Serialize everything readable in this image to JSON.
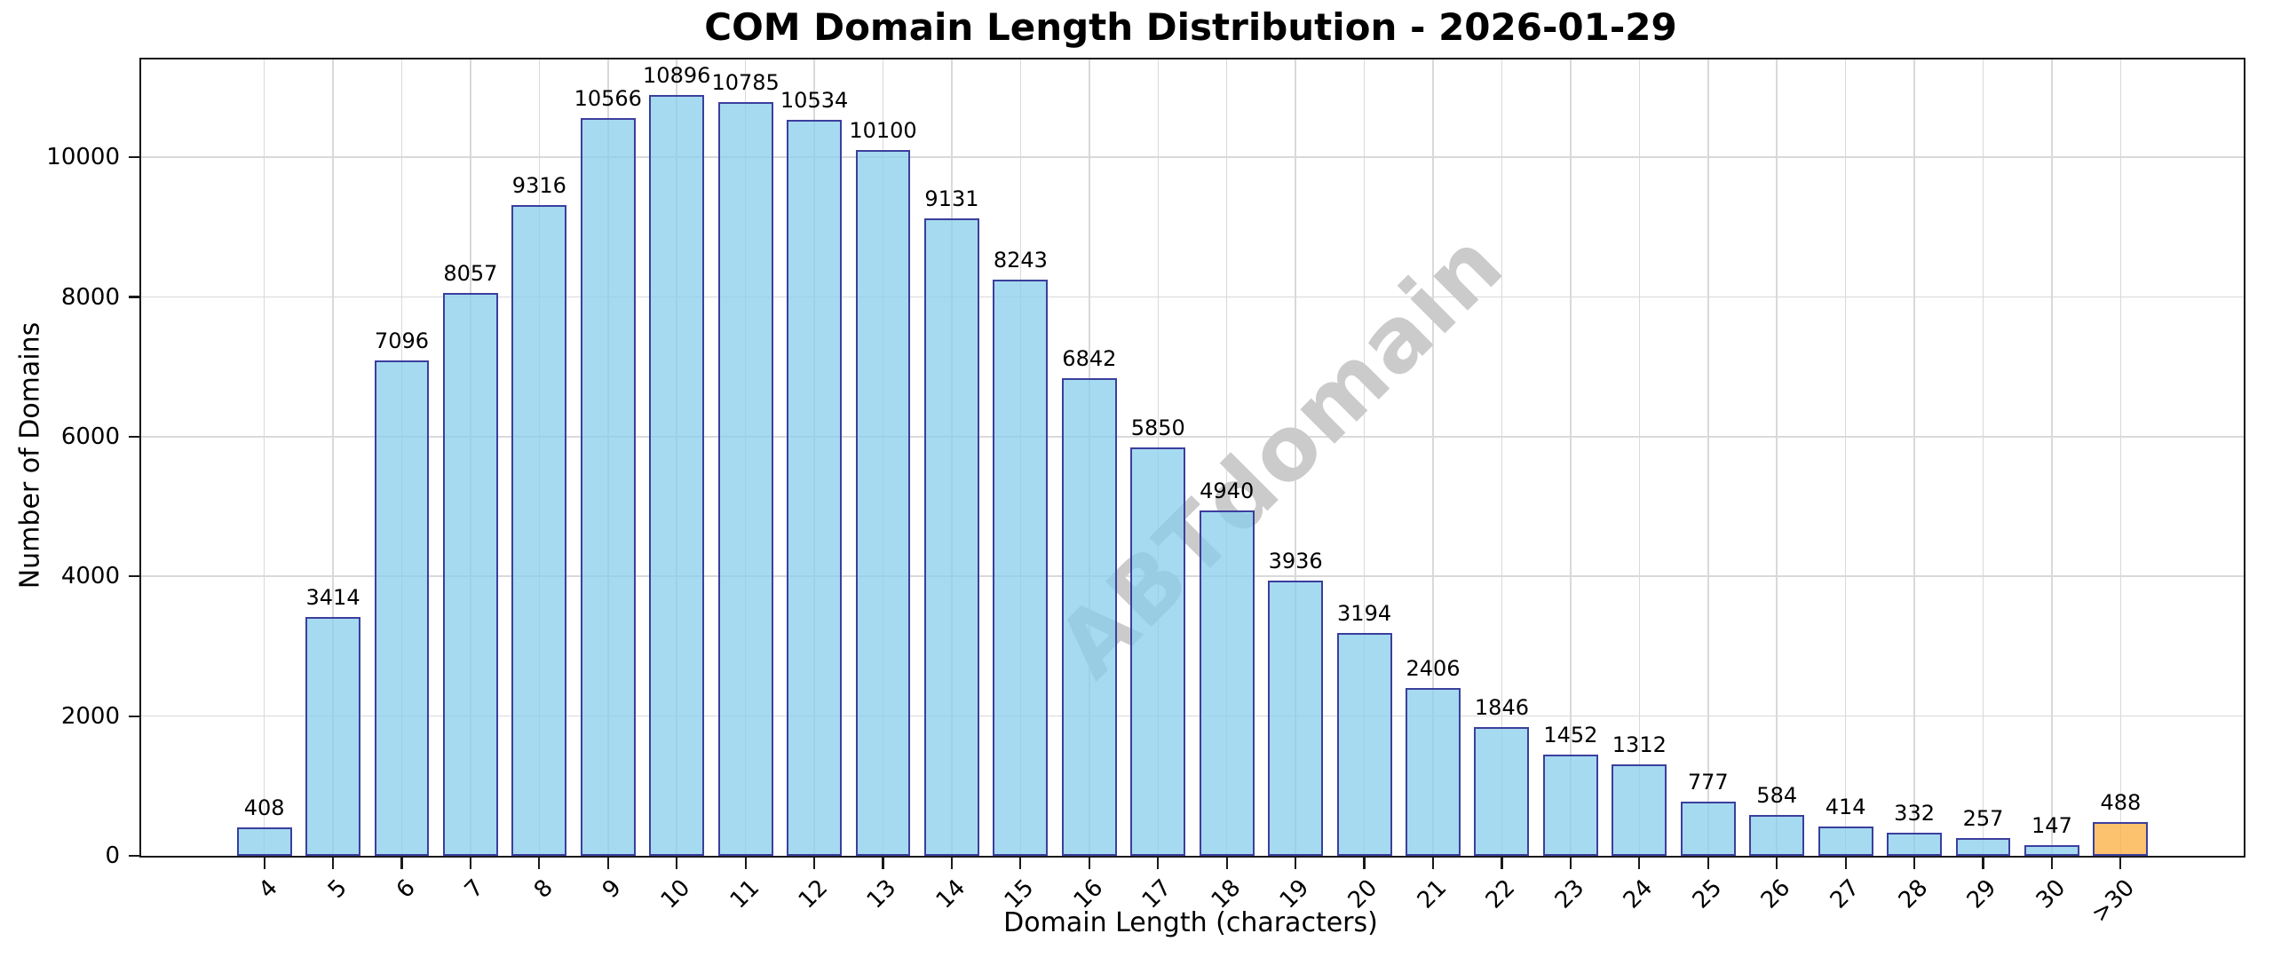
{
  "chart_data": {
    "type": "bar",
    "title": "COM Domain Length Distribution - 2026-01-29",
    "xlabel": "Domain Length (characters)",
    "ylabel": "Number of Domains",
    "categories": [
      "4",
      "5",
      "6",
      "7",
      "8",
      "9",
      "10",
      "11",
      "12",
      "13",
      "14",
      "15",
      "16",
      "17",
      "18",
      "19",
      "20",
      "21",
      "22",
      "23",
      "24",
      "25",
      "26",
      "27",
      "28",
      "29",
      "30",
      ">30"
    ],
    "values": [
      408,
      3414,
      7096,
      8057,
      9316,
      10566,
      10896,
      10785,
      10534,
      10100,
      9131,
      8243,
      6842,
      5850,
      4940,
      3936,
      3194,
      2406,
      1846,
      1452,
      1312,
      777,
      584,
      414,
      332,
      257,
      147,
      488
    ],
    "value_labels_shown": true,
    "bar_color": "#87CEEB",
    "bar_edge_color": "#3B3F9D",
    "highlight_index": 27,
    "highlight_color": "#FBAE3C",
    "grid": true,
    "grid_color": "#D9D9D9",
    "ylim": [
      0,
      11400
    ],
    "yticks": [
      0,
      2000,
      4000,
      6000,
      8000,
      10000
    ],
    "x_tick_rotation_deg": 45,
    "legend": "none"
  },
  "watermark": {
    "text": "ABTdomain",
    "color": "#CBCBCB"
  }
}
